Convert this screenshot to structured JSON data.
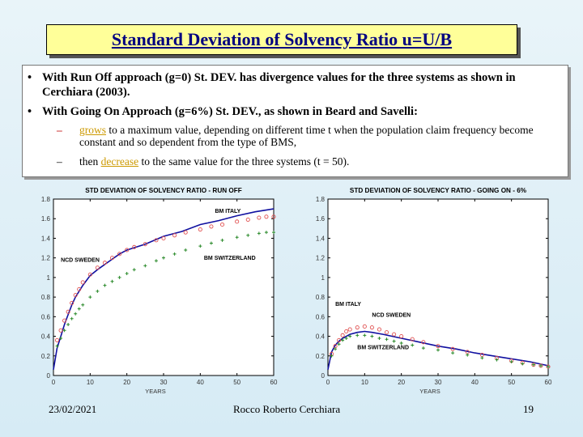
{
  "slide": {
    "title": "Standard Deviation of Solvency Ratio u=U/B",
    "bullet1": "With Run Off approach (g=0) St. DEV. has divergence values for the three systems as shown in Cerchiara (2003).",
    "bullet2": "With Going On Approach (g=6%) St. DEV., as shown in Beard and Savelli:",
    "sub1_highlight": "grows",
    "sub1_rest": " to a maximum value, depending on different time t when the population claim frequency become constant and so dependent from the type of BMS,",
    "sub2_pre": "then ",
    "sub2_highlight": "decrease",
    "sub2_rest": " to the same value for the three systems (t = 50).",
    "bullet_char": "•",
    "dash_char": "–"
  },
  "footer": {
    "date": "23/02/2021",
    "author": "Rocco Roberto Cerchiara",
    "page": "19"
  },
  "colors": {
    "italy": "#1010a0",
    "sweden": "#e05050",
    "switzerland": "#2a8a2a"
  },
  "chart_data": [
    {
      "type": "line",
      "title": "STD DEVIATION OF SOLVENCY RATIO - RUN OFF",
      "xlabel": "YEARS",
      "ylabel": "",
      "xlim": [
        0,
        60
      ],
      "ylim": [
        0,
        1.8
      ],
      "xticks": [
        0,
        10,
        20,
        30,
        40,
        50,
        60
      ],
      "yticks": [
        0,
        0.2,
        0.4,
        0.6,
        0.8,
        1,
        1.2,
        1.4,
        1.6,
        1.8
      ],
      "ytick_labels": [
        "0",
        "0.2",
        "0.4",
        "0.6",
        "0.8",
        "1",
        "1.2",
        "1.4",
        "1.6",
        "1.8"
      ],
      "grid": false,
      "series": [
        {
          "name": "BM ITALY",
          "style": "line",
          "color": "#1010a0",
          "x": [
            0,
            1,
            2,
            3,
            4,
            5,
            6,
            8,
            10,
            12,
            15,
            18,
            20,
            25,
            30,
            35,
            40,
            45,
            50,
            55,
            60
          ],
          "values": [
            0.06,
            0.28,
            0.4,
            0.52,
            0.62,
            0.72,
            0.8,
            0.92,
            1.02,
            1.08,
            1.16,
            1.24,
            1.28,
            1.34,
            1.42,
            1.47,
            1.54,
            1.58,
            1.63,
            1.67,
            1.7
          ]
        },
        {
          "name": "NCD SWEDEN",
          "style": "circle",
          "color": "#e05050",
          "x": [
            1,
            2,
            3,
            4,
            5,
            6,
            7,
            8,
            10,
            12,
            14,
            16,
            18,
            20,
            22,
            25,
            28,
            30,
            33,
            36,
            40,
            43,
            46,
            50,
            53,
            56,
            58,
            60
          ],
          "values": [
            0.36,
            0.46,
            0.56,
            0.65,
            0.74,
            0.82,
            0.88,
            0.95,
            1.03,
            1.1,
            1.15,
            1.2,
            1.24,
            1.28,
            1.31,
            1.34,
            1.38,
            1.4,
            1.43,
            1.46,
            1.49,
            1.52,
            1.54,
            1.57,
            1.59,
            1.61,
            1.62,
            1.62
          ]
        },
        {
          "name": "BM SWITZERLAND",
          "style": "plus",
          "color": "#2a8a2a",
          "x": [
            1,
            2,
            3,
            4,
            5,
            6,
            7,
            8,
            10,
            12,
            14,
            16,
            18,
            20,
            22,
            25,
            28,
            30,
            33,
            36,
            40,
            43,
            46,
            50,
            53,
            56,
            58,
            60
          ],
          "values": [
            0.3,
            0.38,
            0.46,
            0.52,
            0.58,
            0.63,
            0.68,
            0.72,
            0.8,
            0.86,
            0.92,
            0.96,
            1.0,
            1.04,
            1.08,
            1.12,
            1.17,
            1.2,
            1.24,
            1.28,
            1.32,
            1.35,
            1.38,
            1.41,
            1.43,
            1.45,
            1.46,
            1.46
          ]
        }
      ],
      "annotations": [
        {
          "text": "BM ITALY",
          "x": 44,
          "y": 1.66
        },
        {
          "text": "NCD SWEDEN",
          "x": 2,
          "y": 1.16
        },
        {
          "text": "BM SWITZERLAND",
          "x": 41,
          "y": 1.18
        }
      ]
    },
    {
      "type": "line",
      "title": "STD DEVIATION OF SOLVENCY RATIO - GOING ON - 6%",
      "xlabel": "YEARS",
      "ylabel": "",
      "xlim": [
        0,
        60
      ],
      "ylim": [
        0,
        1.8
      ],
      "xticks": [
        0,
        10,
        20,
        30,
        40,
        50,
        60
      ],
      "yticks": [
        0,
        0.2,
        0.4,
        0.6,
        0.8,
        1,
        1.2,
        1.4,
        1.6,
        1.8
      ],
      "ytick_labels": [
        "0",
        "0.2",
        "0.4",
        "0.6",
        "0.8",
        "1",
        "1.2",
        "1.4",
        "1.6",
        "1.8"
      ],
      "grid": false,
      "series": [
        {
          "name": "BM ITALY",
          "style": "line",
          "color": "#1010a0",
          "x": [
            0,
            1,
            2,
            3,
            4,
            5,
            6,
            8,
            10,
            12,
            15,
            20,
            25,
            30,
            35,
            40,
            45,
            50,
            55,
            60
          ],
          "values": [
            0.06,
            0.24,
            0.31,
            0.35,
            0.38,
            0.4,
            0.42,
            0.44,
            0.45,
            0.44,
            0.42,
            0.38,
            0.34,
            0.3,
            0.27,
            0.23,
            0.2,
            0.17,
            0.14,
            0.1
          ]
        },
        {
          "name": "NCD SWEDEN",
          "style": "circle",
          "color": "#e05050",
          "x": [
            1,
            2,
            3,
            4,
            5,
            6,
            8,
            10,
            12,
            14,
            16,
            18,
            20,
            23,
            26,
            30,
            34,
            38,
            42,
            46,
            50,
            53,
            56,
            58,
            60
          ],
          "values": [
            0.22,
            0.3,
            0.36,
            0.41,
            0.45,
            0.47,
            0.49,
            0.5,
            0.49,
            0.47,
            0.44,
            0.42,
            0.4,
            0.37,
            0.34,
            0.3,
            0.27,
            0.24,
            0.21,
            0.18,
            0.15,
            0.13,
            0.11,
            0.1,
            0.09
          ]
        },
        {
          "name": "BM SWITZERLAND",
          "style": "plus",
          "color": "#2a8a2a",
          "x": [
            1,
            2,
            3,
            4,
            5,
            6,
            8,
            10,
            12,
            14,
            16,
            18,
            20,
            23,
            26,
            30,
            34,
            38,
            42,
            46,
            50,
            53,
            56,
            58,
            60
          ],
          "values": [
            0.2,
            0.27,
            0.32,
            0.36,
            0.38,
            0.4,
            0.41,
            0.41,
            0.4,
            0.38,
            0.37,
            0.35,
            0.33,
            0.31,
            0.28,
            0.26,
            0.23,
            0.21,
            0.18,
            0.16,
            0.14,
            0.12,
            0.11,
            0.1,
            0.09
          ]
        }
      ],
      "annotations": [
        {
          "text": "BM ITALY",
          "x": 2,
          "y": 0.71
        },
        {
          "text": "NCD SWEDEN",
          "x": 12,
          "y": 0.6
        },
        {
          "text": "BM SWITZERLAND",
          "x": 8,
          "y": 0.27
        }
      ]
    }
  ]
}
